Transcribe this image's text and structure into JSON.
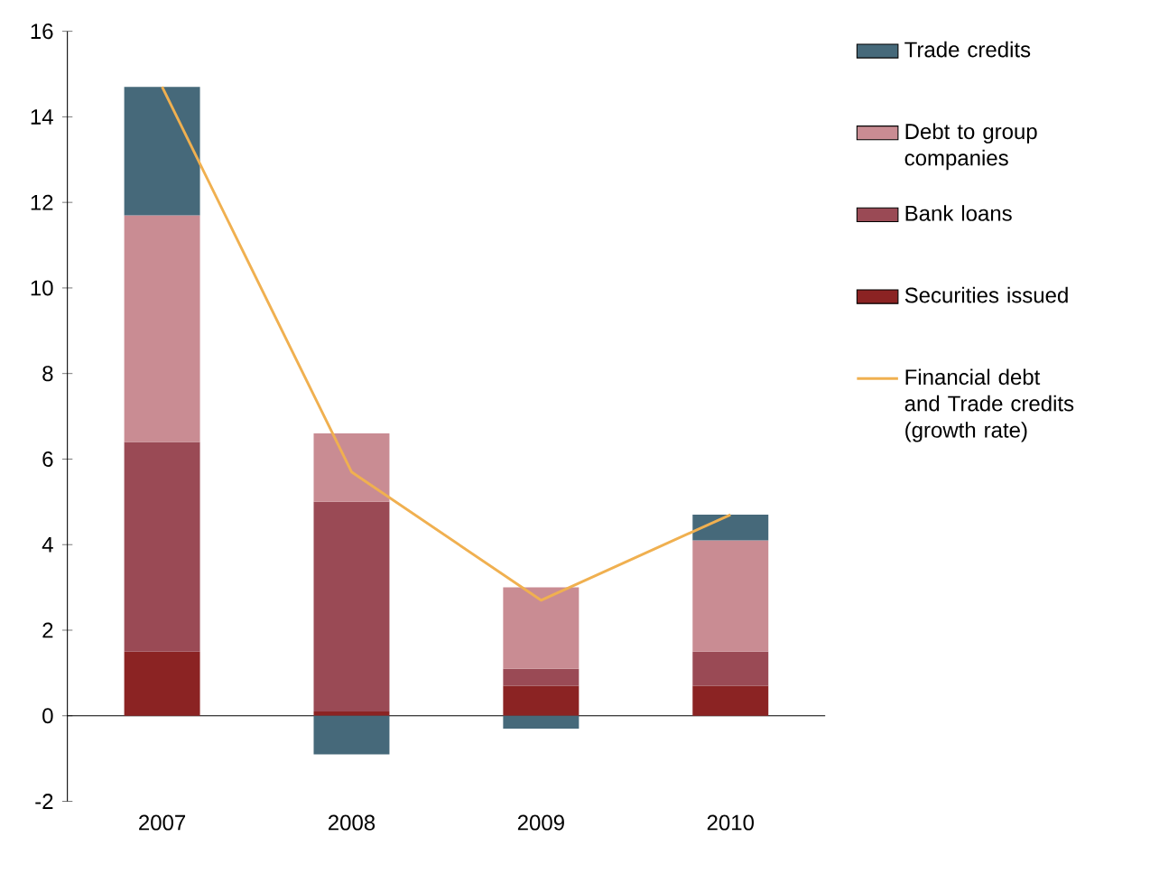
{
  "chart_data": {
    "type": "bar",
    "stacked": true,
    "categories": [
      "2007",
      "2008",
      "2009",
      "2010"
    ],
    "series": [
      {
        "name": "Securities issued",
        "color": "#8b2323",
        "values": [
          1.5,
          0.1,
          0.7,
          0.7
        ]
      },
      {
        "name": "Bank loans",
        "color": "#9a4a55",
        "values": [
          4.9,
          4.9,
          0.4,
          0.8
        ]
      },
      {
        "name": "Debt to group companies",
        "color": "#c98c93",
        "values": [
          5.3,
          1.6,
          1.9,
          2.6
        ]
      },
      {
        "name": "Trade credits",
        "color": "#46697a",
        "values": [
          3.0,
          -0.9,
          -0.3,
          0.6
        ]
      },
      {
        "name": "Financial debt and Trade credits (growth rate)",
        "type": "line",
        "color": "#f0b050",
        "values": [
          14.7,
          5.7,
          2.7,
          4.7
        ]
      }
    ],
    "ylim": [
      -2,
      16
    ],
    "yticks": [
      -2,
      0,
      2,
      4,
      6,
      8,
      10,
      12,
      14,
      16
    ],
    "legend": "right"
  }
}
